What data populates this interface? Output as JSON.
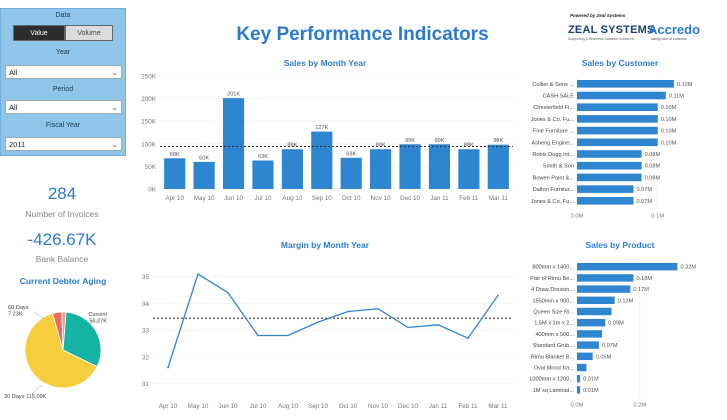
{
  "filters": {
    "data_label": "Data",
    "value_btn": "Value",
    "volume_btn": "Volume",
    "year_label": "Year",
    "year_value": "All",
    "period_label": "Period",
    "period_value": "All",
    "fiscal_label": "Fiscal Year",
    "fiscal_value": "2011"
  },
  "kpis": {
    "invoices_value": "284",
    "invoices_label": "Number of Invoices",
    "bank_value": "-426.67K",
    "bank_label": "Bank Balance"
  },
  "title": "Key Performance Indicators",
  "logo": {
    "powered": "Powered by Zeal Systems",
    "company": "ZEAL SYSTEMS",
    "tagline": "Supporting & Business Software Solutions",
    "brand": "Accredo",
    "brand_tag": "taking care of business"
  },
  "colors": {
    "accent": "#2c7bd2",
    "bar": "#2e86d1",
    "title": "#2c7bd2",
    "filter_bg": "#8ec5e8"
  },
  "chart_data": [
    {
      "id": "sales_month",
      "type": "bar",
      "title": "Sales by Month Year",
      "categories": [
        "Apr 10",
        "May 10",
        "Jun 10",
        "Jul 10",
        "Aug 10",
        "Sep 10",
        "Oct 10",
        "Nov 10",
        "Dec 10",
        "Jan 11",
        "Feb 11",
        "Mar 11"
      ],
      "values": [
        68,
        60,
        201,
        63,
        88,
        127,
        69,
        88,
        99,
        99,
        88,
        98
      ],
      "data_labels": [
        "68K",
        "60K",
        "201K",
        "63K",
        "88K",
        "127K",
        "69K",
        "88K",
        "99K",
        "99K",
        "88K",
        "98K"
      ],
      "y_ticks": [
        "0K",
        "50K",
        "100K",
        "150K",
        "200K",
        "250K"
      ],
      "ylim": [
        0,
        250
      ],
      "average_line": 94,
      "grid": true
    },
    {
      "id": "margin_month",
      "type": "line",
      "title": "Margin by Month Year",
      "categories": [
        "Apr 10",
        "May 10",
        "Jun 10",
        "Jul 10",
        "Aug 10",
        "Sep 10",
        "Oct 10",
        "Nov 10",
        "Dec 10",
        "Jan 11",
        "Feb 11",
        "Mar 11"
      ],
      "values": [
        31.6,
        35.1,
        34.4,
        32.8,
        32.8,
        33.3,
        33.7,
        33.8,
        33.1,
        33.2,
        32.7,
        34.3
      ],
      "y_ticks": [
        "31",
        "32",
        "33",
        "34",
        "35"
      ],
      "ylim": [
        30.5,
        35.7
      ],
      "average_line": 33.45,
      "grid": true
    },
    {
      "id": "sales_customer",
      "type": "bar",
      "orientation": "horizontal",
      "title": "Sales by Customer",
      "categories": [
        "Collier & Sons ...",
        "CASH SALE",
        "Chesterfield Fi...",
        "Jones & Co. Fu...",
        "Fine Furniture ...",
        "Asheng Engine...",
        "Robix Dugg Int...",
        "Smith & Son",
        "Bowen Paint &...",
        "Dalton Furnitur...",
        "Jones & Co. Fu..."
      ],
      "values": [
        0.12,
        0.11,
        0.1,
        0.1,
        0.1,
        0.1,
        0.08,
        0.08,
        0.08,
        0.07,
        0.07
      ],
      "data_labels": [
        "0.12M",
        "0.11M",
        "0.10M",
        "0.10M",
        "0.10M",
        "0.10M",
        "0.08M",
        "0.08M",
        "0.08M",
        "0.07M",
        "0.07M"
      ],
      "x_ticks": [
        "0.0M",
        "0.1M"
      ],
      "xlim": [
        0,
        0.14
      ]
    },
    {
      "id": "sales_product",
      "type": "bar",
      "orientation": "horizontal",
      "title": "Sales by Product",
      "categories": [
        "800mm x 1400...",
        "Pair of Rimu Be...",
        "4 Draw Dressin...",
        "1550mm x 900...",
        "Queen Size Ri...",
        "1.5M x 1m x 2...",
        "400mm x 500...",
        "Standard Grub...",
        "Rimu Blanket B...",
        "Oval Mirror fra...",
        "1000mm x 1200...",
        "1M sq Laminat..."
      ],
      "values": [
        0.32,
        0.18,
        0.17,
        0.12,
        0.11,
        0.09,
        0.08,
        0.07,
        0.05,
        0.03,
        0.01,
        0.01
      ],
      "data_labels": [
        "0.32M",
        "0.18M",
        "0.17M",
        "0.12M",
        "",
        "0.09M",
        "",
        "0.07M",
        "0.05M",
        "",
        "0.01M",
        "0.01M"
      ],
      "x_ticks": [
        "0.0M",
        "0.2M"
      ],
      "xlim": [
        0,
        0.36
      ]
    },
    {
      "id": "debtor_aging",
      "type": "pie",
      "title": "Current Debtor Aging",
      "categories": [
        "Current",
        "30 Days",
        "60 Days",
        "Other"
      ],
      "values": [
        56.27,
        115.09,
        7.23,
        3.2
      ],
      "data_labels": [
        "Current 56.27K",
        "30 Days 115.09K",
        "60 Days 7.23K",
        ""
      ],
      "colors": [
        "#14b3a4",
        "#f6cd3c",
        "#ed6a5e",
        "#f29a8e"
      ]
    }
  ]
}
